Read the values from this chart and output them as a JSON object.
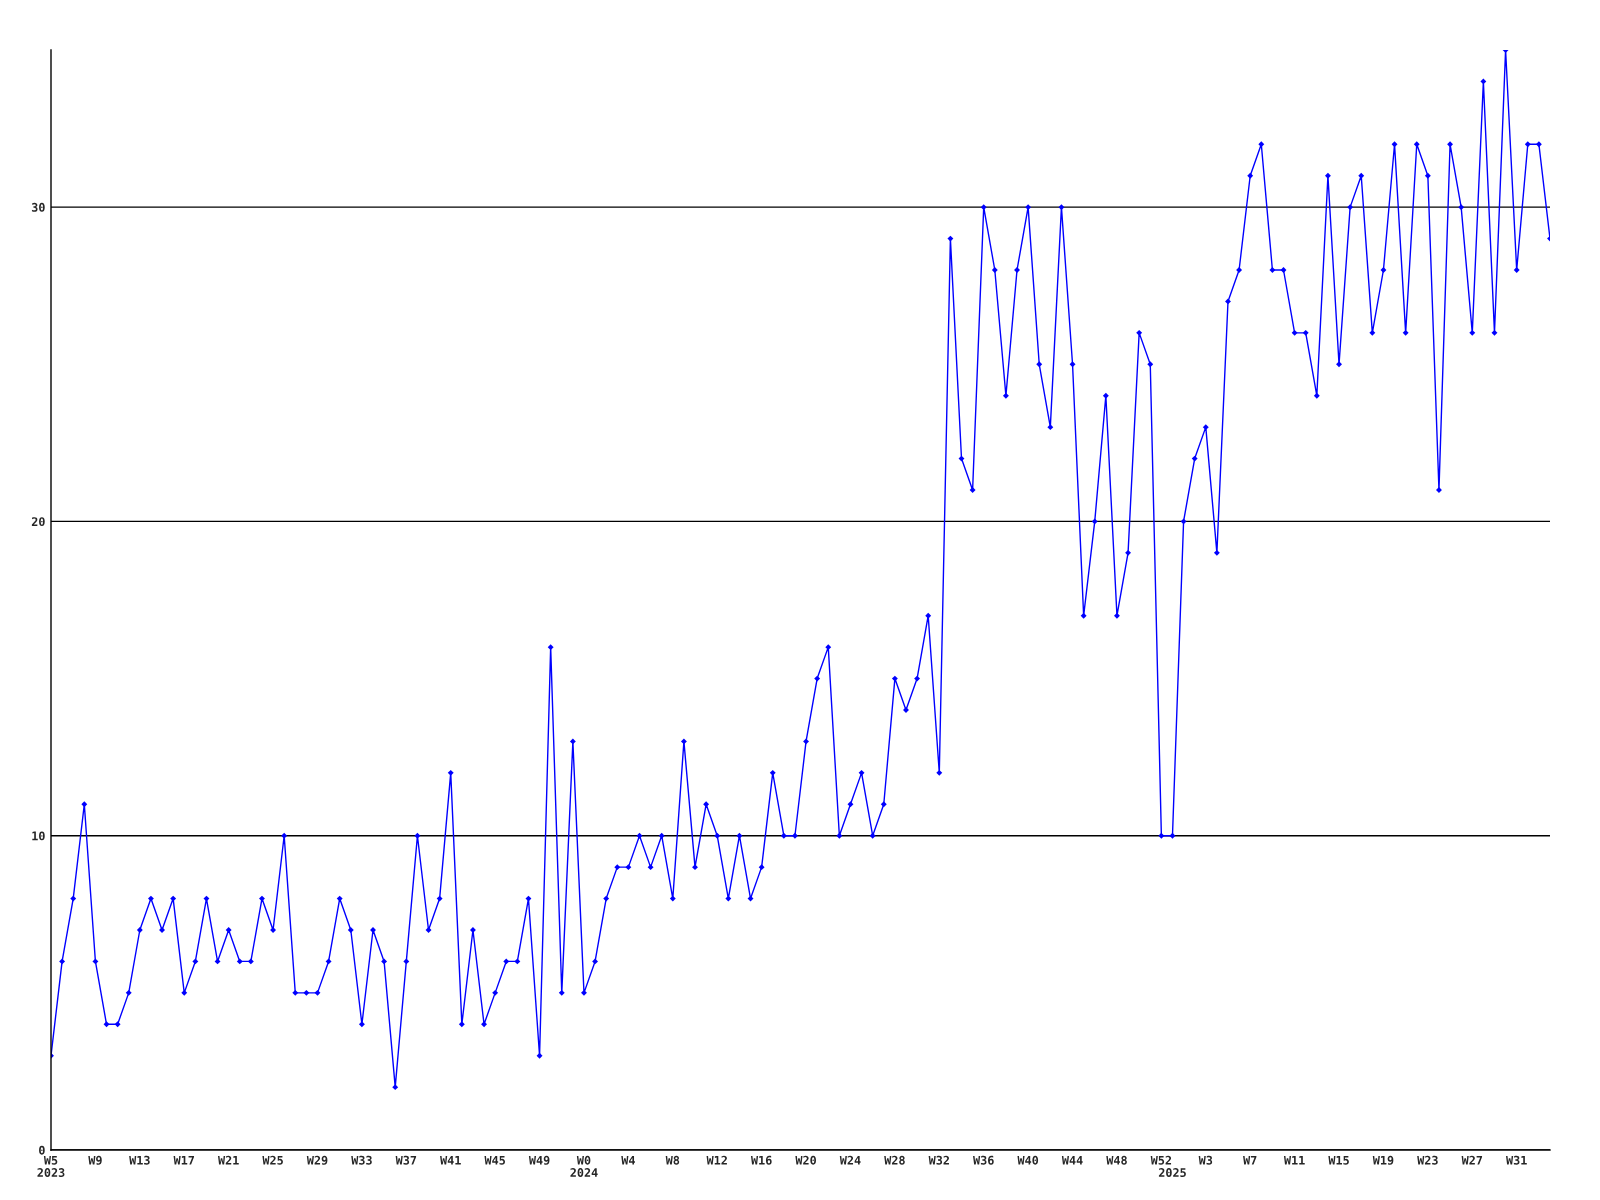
{
  "chart_data": {
    "type": "line",
    "categories": [
      "W5\n2023",
      null,
      null,
      null,
      "W9",
      null,
      null,
      null,
      "W13",
      null,
      null,
      null,
      "W17",
      null,
      null,
      null,
      "W21",
      null,
      null,
      null,
      "W25",
      null,
      null,
      null,
      "W29",
      null,
      null,
      null,
      "W33",
      null,
      null,
      null,
      "W37",
      null,
      null,
      null,
      "W41",
      null,
      null,
      null,
      "W45",
      null,
      null,
      null,
      "W49",
      null,
      null,
      null,
      "W0\n2024",
      null,
      null,
      null,
      "W4",
      null,
      null,
      null,
      "W8",
      null,
      null,
      null,
      "W12",
      null,
      null,
      null,
      "W16",
      null,
      null,
      null,
      "W20",
      null,
      null,
      null,
      "W24",
      null,
      null,
      null,
      "W28",
      null,
      null,
      null,
      "W32",
      null,
      null,
      null,
      "W36",
      null,
      null,
      null,
      "W40",
      null,
      null,
      null,
      "W44",
      null,
      null,
      null,
      "W48",
      null,
      null,
      null,
      "W52",
      "\n2025",
      null,
      null,
      "W3",
      null,
      null,
      null,
      "W7",
      null,
      null,
      null,
      "W11",
      null,
      null,
      null,
      "W15",
      null,
      null,
      null,
      "W19",
      null,
      null,
      null,
      "W23",
      null,
      null,
      null,
      "W27",
      null,
      null,
      null,
      "W31",
      null,
      null,
      null
    ],
    "series": [
      {
        "color": "#0000ff",
        "values": [
          3,
          6,
          8,
          11,
          6,
          4,
          4,
          5,
          7,
          8,
          7,
          8,
          5,
          6,
          8,
          6,
          7,
          6,
          6,
          8,
          7,
          10,
          5,
          5,
          5,
          6,
          8,
          7,
          4,
          7,
          6,
          2,
          6,
          10,
          7,
          8,
          12,
          4,
          7,
          4,
          5,
          6,
          6,
          8,
          3,
          16,
          5,
          13,
          5,
          6,
          8,
          9,
          9,
          10,
          9,
          10,
          8,
          13,
          9,
          11,
          10,
          8,
          10,
          8,
          9,
          12,
          10,
          10,
          13,
          15,
          16,
          10,
          11,
          12,
          10,
          11,
          15,
          14,
          15,
          17,
          12,
          29,
          22,
          21,
          30,
          28,
          24,
          28,
          30,
          25,
          23,
          30,
          25,
          17,
          20,
          24,
          17,
          19,
          26,
          25,
          10,
          10,
          20,
          22,
          23,
          19,
          27,
          28,
          31,
          32,
          28,
          28,
          26,
          26,
          24,
          31,
          25,
          30,
          31,
          26,
          28,
          32,
          26,
          32,
          31,
          21,
          32,
          30,
          26,
          34,
          26,
          35,
          28,
          32,
          32,
          29
        ]
      }
    ],
    "ylim": [
      0,
      35
    ],
    "yticks": [
      0,
      10,
      20,
      30
    ],
    "grid": "y",
    "marker": "diamond",
    "line_style": "solid"
  }
}
